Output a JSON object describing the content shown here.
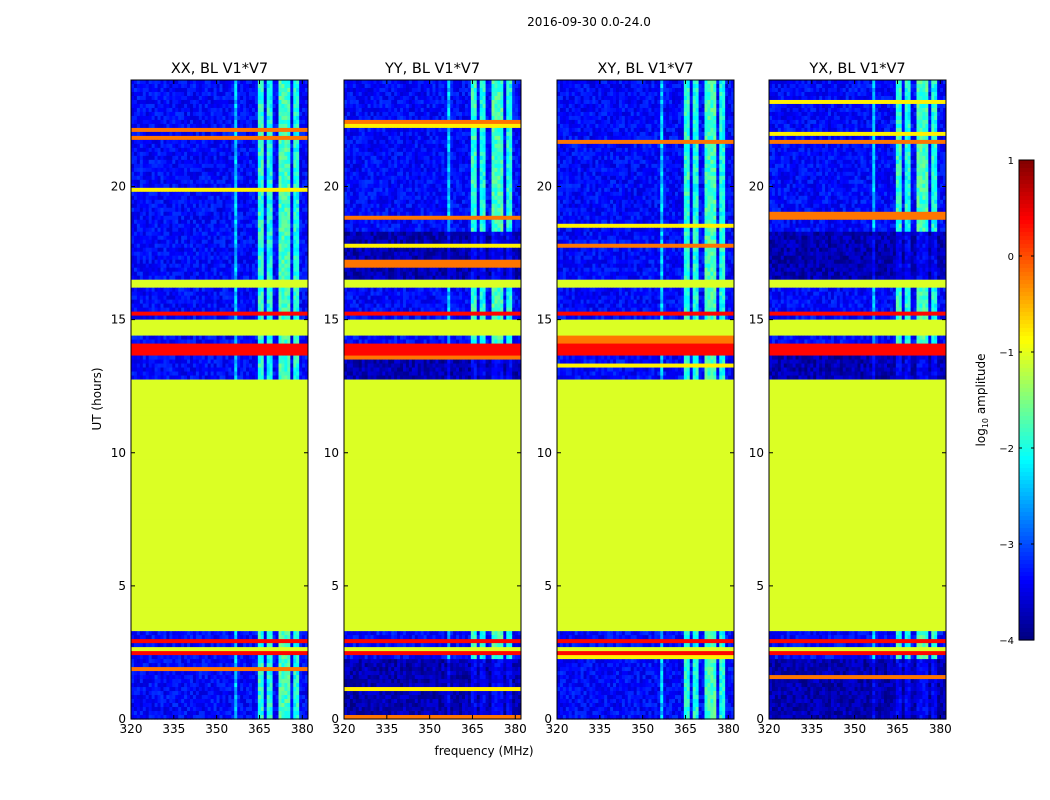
{
  "figure_title": "2016-09-30 0.0-24.0",
  "chart_data": {
    "type": "heatmap",
    "title": "2016-09-30 0.0-24.0",
    "xlabel": "frequency (MHz)",
    "ylabel": "UT (hours)",
    "xlim": [
      320,
      382
    ],
    "ylim": [
      0,
      24
    ],
    "xticks": [
      320,
      335,
      350,
      365,
      380
    ],
    "yticks": [
      0,
      5,
      10,
      15,
      20
    ],
    "colorbar": {
      "label": "log10 amplitude",
      "label_text": "log",
      "label_sub": "10",
      "label_suffix": " amplitude",
      "range": [
        -4,
        1
      ],
      "ticks": [
        {
          "value": 1,
          "label": "1"
        },
        {
          "value": 0,
          "label": "0"
        },
        {
          "value": -1,
          "label": "−1"
        },
        {
          "value": -2,
          "label": "−2"
        },
        {
          "value": -3,
          "label": "−3"
        },
        {
          "value": -4,
          "label": "−4"
        }
      ]
    },
    "flag_value": -1.05,
    "panels": [
      {
        "title": "XX, BL V1*V7"
      },
      {
        "title": "YY, BL V1*V7"
      },
      {
        "title": "XY, BL V1*V7"
      },
      {
        "title": "YX, BL V1*V7"
      }
    ],
    "flagged_ranges": [
      {
        "from": 3.3,
        "to": 12.7,
        "value": -1.05
      },
      {
        "from": 14.35,
        "to": 15.05,
        "value": -1.05
      },
      {
        "from": 16.15,
        "to": 16.45,
        "value": -1.05
      },
      {
        "from": 2.55,
        "to": 2.75,
        "value": -1.05
      }
    ],
    "rfi_bands": [
      {
        "from": 350.5,
        "to": 351.5,
        "value": -2.3
      },
      {
        "from": 356.5,
        "to": 357.5,
        "value": -2.4
      },
      {
        "from": 364,
        "to": 366.5,
        "value": -1.9
      },
      {
        "from": 368,
        "to": 370,
        "value": -2.0
      },
      {
        "from": 372,
        "to": 376,
        "value": -1.8
      },
      {
        "from": 377,
        "to": 379,
        "value": -2.0
      }
    ],
    "orange_bands": [
      {
        "from": 13.6,
        "to": 14.1,
        "value": 0.35
      },
      {
        "from": 15.1,
        "to": 15.3,
        "value": 0.35
      },
      {
        "from": 2.4,
        "to": 2.5,
        "value": 0.35
      },
      {
        "from": 2.9,
        "to": 3.0,
        "value": 0.35
      }
    ]
  }
}
